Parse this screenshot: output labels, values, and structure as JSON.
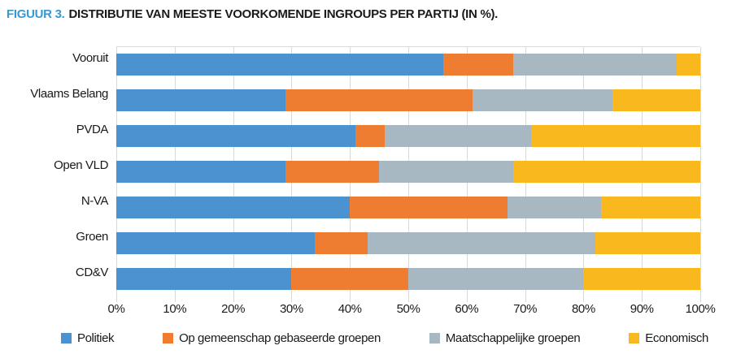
{
  "title": {
    "prefix": "FIGUUR 3.",
    "text": "DISTRIBUTIE VAN MEESTE VOORKOMENDE INGROUPS PER PARTIJ (IN %)."
  },
  "colors": {
    "title_accent": "#3599d6",
    "text": "#1a1a1a",
    "gridline": "#d9d9d9",
    "series_blue": "#4a93d0",
    "series_orange": "#ee7c31",
    "series_gray": "#a8b8c2",
    "series_yellow": "#fab81f"
  },
  "chart_data": {
    "type": "bar",
    "orientation": "horizontal",
    "stacked": true,
    "title": "FIGUUR 3. DISTRIBUTIE VAN MEESTE VOORKOMENDE INGROUPS PER PARTIJ (IN %).",
    "categories": [
      "Vooruit",
      "Vlaams Belang",
      "PVDA",
      "Open VLD",
      "N-VA",
      "Groen",
      "CD&V"
    ],
    "series": [
      {
        "name": "Politiek",
        "color": "#4a93d0",
        "values": [
          56,
          29,
          41,
          29,
          40,
          34,
          30
        ]
      },
      {
        "name": "Op gemeenschap gebaseerde groepen",
        "color": "#ee7c31",
        "values": [
          12,
          32,
          5,
          16,
          27,
          9,
          20
        ]
      },
      {
        "name": "Maatschappelijke groepen",
        "color": "#a8b8c2",
        "values": [
          28,
          24,
          25,
          23,
          16,
          39,
          30
        ]
      },
      {
        "name": "Economisch",
        "color": "#fab81f",
        "values": [
          4,
          15,
          29,
          32,
          17,
          18,
          20
        ]
      }
    ],
    "xlabel": "",
    "ylabel": "",
    "xlim": [
      0,
      100
    ],
    "xticks": [
      "0%",
      "10%",
      "20%",
      "30%",
      "40%",
      "50%",
      "60%",
      "70%",
      "80%",
      "90%",
      "100%"
    ],
    "grid": "vertical",
    "legend_position": "bottom"
  }
}
